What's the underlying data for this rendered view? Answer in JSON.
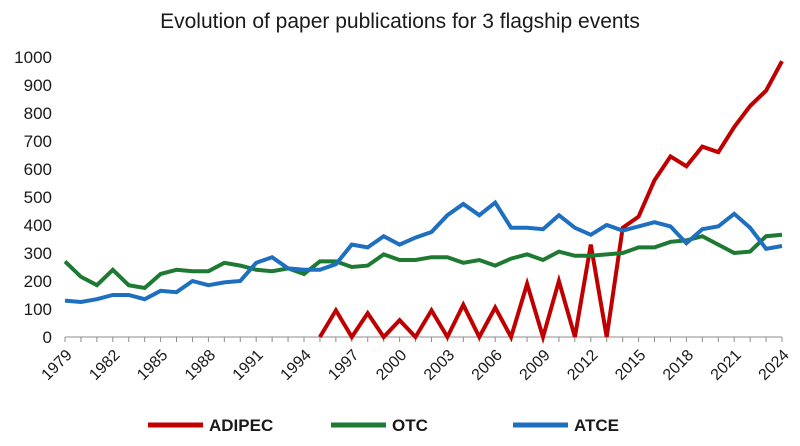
{
  "chart_data": {
    "type": "line",
    "title": "Evolution of paper publications for 3 flagship events",
    "xlabel": "",
    "ylabel": "",
    "ylim": [
      0,
      1000
    ],
    "yticks": [
      0,
      100,
      200,
      300,
      400,
      500,
      600,
      700,
      800,
      900,
      1000
    ],
    "xlim": [
      1979,
      2024
    ],
    "xticks": [
      1979,
      1982,
      1985,
      1988,
      1991,
      1994,
      1997,
      2000,
      2003,
      2006,
      2009,
      2012,
      2015,
      2018,
      2021,
      2024
    ],
    "grid": false,
    "legend_position": "bottom",
    "series": [
      {
        "name": "ADIPEC",
        "color": "#c00000",
        "x": [
          1995,
          1996,
          1997,
          1998,
          1999,
          2000,
          2001,
          2002,
          2003,
          2004,
          2005,
          2006,
          2007,
          2008,
          2009,
          2010,
          2011,
          2012,
          2013,
          2014,
          2015,
          2016,
          2017,
          2018,
          2019,
          2020,
          2021,
          2022,
          2023,
          2024
        ],
        "values": [
          0,
          95,
          0,
          85,
          0,
          60,
          0,
          95,
          0,
          115,
          0,
          105,
          0,
          190,
          0,
          200,
          0,
          330,
          0,
          390,
          430,
          560,
          645,
          610,
          680,
          660,
          750,
          825,
          880,
          985
        ]
      },
      {
        "name": "OTC",
        "color": "#1e7a32",
        "x": [
          1979,
          1980,
          1981,
          1982,
          1983,
          1984,
          1985,
          1986,
          1987,
          1988,
          1989,
          1990,
          1991,
          1992,
          1993,
          1994,
          1995,
          1996,
          1997,
          1998,
          1999,
          2000,
          2001,
          2002,
          2003,
          2004,
          2005,
          2006,
          2007,
          2008,
          2009,
          2010,
          2011,
          2012,
          2013,
          2014,
          2015,
          2016,
          2017,
          2018,
          2019,
          2020,
          2021,
          2022,
          2023,
          2024
        ],
        "values": [
          270,
          215,
          185,
          240,
          185,
          175,
          225,
          240,
          235,
          235,
          265,
          255,
          240,
          235,
          245,
          225,
          270,
          270,
          250,
          255,
          295,
          275,
          275,
          285,
          285,
          265,
          275,
          255,
          280,
          295,
          275,
          305,
          290,
          290,
          295,
          300,
          320,
          320,
          340,
          345,
          360,
          330,
          300,
          305,
          360,
          365
        ]
      },
      {
        "name": "ATCE",
        "color": "#1f6fc1",
        "x": [
          1979,
          1980,
          1981,
          1982,
          1983,
          1984,
          1985,
          1986,
          1987,
          1988,
          1989,
          1990,
          1991,
          1992,
          1993,
          1994,
          1995,
          1996,
          1997,
          1998,
          1999,
          2000,
          2001,
          2002,
          2003,
          2004,
          2005,
          2006,
          2007,
          2008,
          2009,
          2010,
          2011,
          2012,
          2013,
          2014,
          2015,
          2016,
          2017,
          2018,
          2019,
          2020,
          2021,
          2022,
          2023,
          2024
        ],
        "values": [
          130,
          125,
          135,
          150,
          150,
          135,
          165,
          160,
          200,
          185,
          195,
          200,
          265,
          285,
          245,
          240,
          240,
          260,
          330,
          320,
          360,
          330,
          355,
          375,
          435,
          475,
          435,
          480,
          390,
          390,
          385,
          435,
          390,
          365,
          400,
          380,
          395,
          410,
          395,
          335,
          385,
          395,
          440,
          390,
          315,
          325
        ]
      }
    ]
  }
}
